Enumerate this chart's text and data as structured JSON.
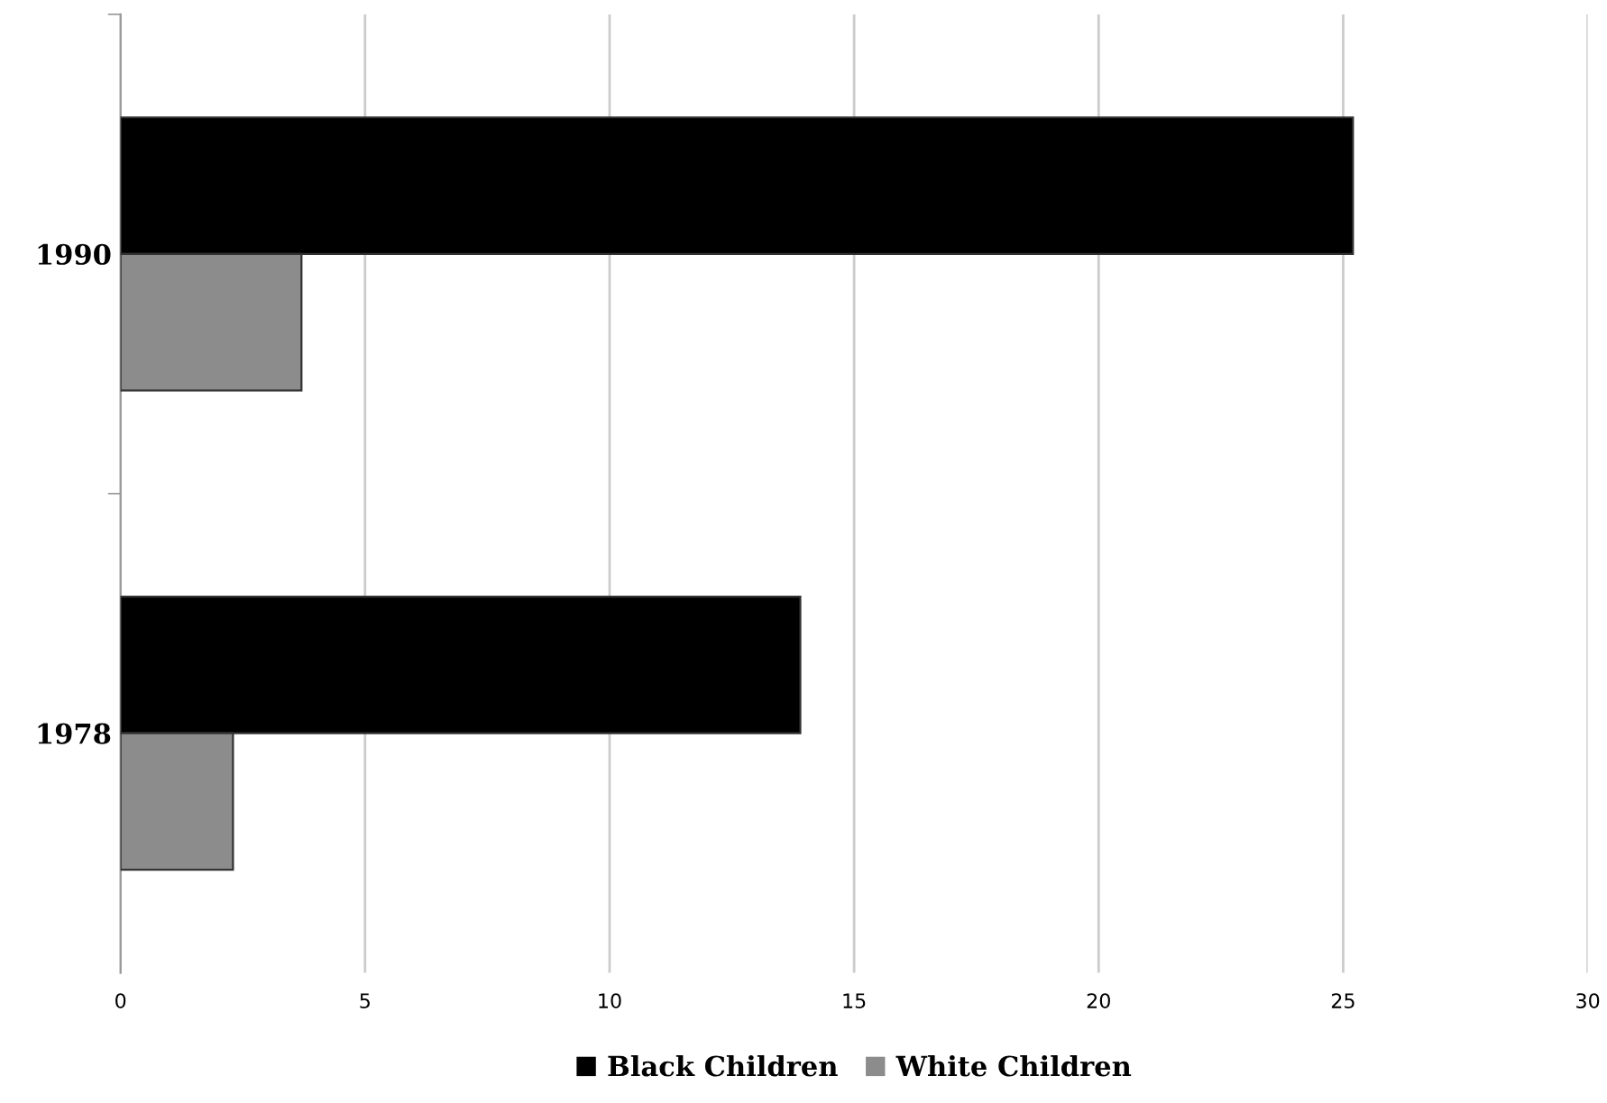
{
  "chart_data": {
    "type": "bar",
    "orientation": "horizontal",
    "categories": [
      "1990",
      "1978"
    ],
    "series": [
      {
        "name": "Black Children",
        "color": "#000000",
        "values": [
          25.2,
          13.9
        ]
      },
      {
        "name": "White Children",
        "color": "#8c8c8c",
        "values": [
          3.7,
          2.3
        ]
      }
    ],
    "xlim": [
      0,
      30
    ],
    "xticks": [
      0,
      5,
      10,
      15,
      20,
      25,
      30
    ],
    "grid": "x",
    "legend": "bottom"
  }
}
